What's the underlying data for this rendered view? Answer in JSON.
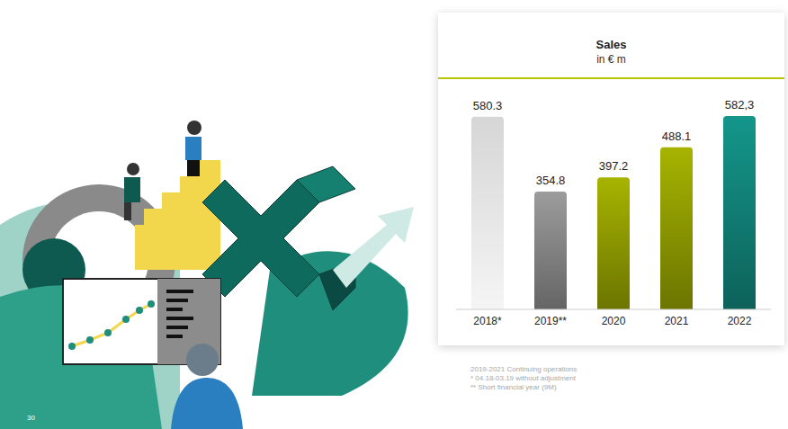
{
  "chart_data": {
    "type": "bar",
    "title": "Sales",
    "subtitle": "in € m",
    "categories": [
      "2018*",
      "2019**",
      "2020",
      "2021",
      "2022"
    ],
    "values": [
      580.3,
      354.8,
      397.2,
      488.1,
      582.3
    ],
    "value_labels": [
      "580.3",
      "354.8",
      "397.2",
      "488.1",
      "582,3"
    ],
    "colors": [
      "#d6d6d6",
      "#9c9c9c",
      "#a6b400",
      "#a6b400",
      "#14968a"
    ],
    "data_labels": true,
    "tick_labels": "x",
    "grid": false
  },
  "footnotes": [
    "2019-2021 Continuing operations",
    "* 04.18-03.19 without adjustment",
    "** Short financial year (9M)"
  ],
  "page_number": "30"
}
